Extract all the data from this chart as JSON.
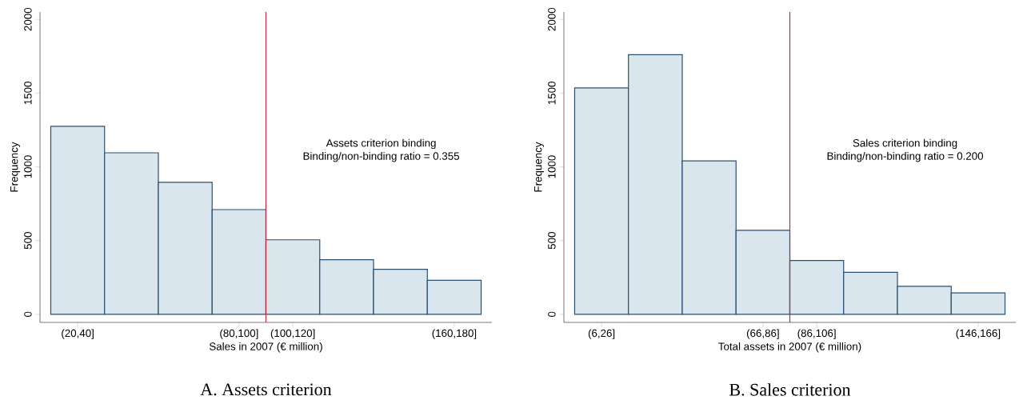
{
  "chart_data": [
    {
      "type": "bar",
      "title": "A. Assets criterion",
      "xlabel": "Sales in 2007 (€ million)",
      "ylabel": "Frequency",
      "categories": [
        "(20,40]",
        null,
        null,
        "(80,100]",
        "(100,120]",
        null,
        null,
        "(160,180]"
      ],
      "values": [
        1275,
        1095,
        895,
        710,
        505,
        370,
        305,
        230
      ],
      "color": "#dae6ed",
      "ylim": [
        -55,
        2050
      ],
      "yticks": [
        0,
        500,
        1000,
        1500,
        2000
      ],
      "annotations": [
        "Assets criterion binding",
        "Binding/non-binding ratio = 0.355"
      ]
    },
    {
      "type": "bar",
      "title": "B. Sales criterion",
      "xlabel": "Total assets in 2007 (€ million)",
      "ylabel": "Frequency",
      "categories": [
        "(6,26]",
        null,
        null,
        "(66,86]",
        "(86,106]",
        null,
        null,
        "(146,166]"
      ],
      "values": [
        1535,
        1760,
        1040,
        570,
        365,
        285,
        190,
        145
      ],
      "color": "#dae6ed",
      "ylim": [
        -55,
        2050
      ],
      "yticks": [
        0,
        500,
        1000,
        1500,
        2000
      ],
      "annotations": [
        "Sales criterion binding",
        "Binding/non-binding ratio = 0.200"
      ]
    }
  ]
}
